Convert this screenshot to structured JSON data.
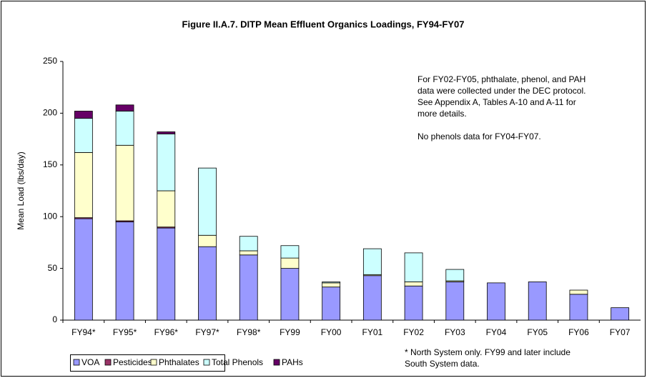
{
  "chart_data": {
    "type": "stacked_bar",
    "title": "Figure II.A.7.  DITP Mean Effluent Organics Loadings, FY94-FY07",
    "y_label": "Mean Load (lbs/day)",
    "categories": [
      "FY94*",
      "FY95*",
      "FY96*",
      "FY97*",
      "FY98*",
      "FY99",
      "FY00",
      "FY01",
      "FY02",
      "FY03",
      "FY04",
      "FY05",
      "FY06",
      "FY07"
    ],
    "series": [
      {
        "name": "VOA",
        "color": "#9999ff",
        "values": [
          98,
          95,
          89,
          71,
          63,
          50,
          32,
          43,
          33,
          37,
          36,
          37,
          25,
          12
        ]
      },
      {
        "name": "Pesticides",
        "color": "#993366",
        "values": [
          1,
          1,
          1,
          0,
          0,
          0,
          0,
          0,
          0,
          0,
          0,
          0,
          0,
          0
        ]
      },
      {
        "name": "Phthalates",
        "color": "#ffffcc",
        "values": [
          63,
          73,
          35,
          11,
          4,
          10,
          4,
          1,
          4,
          1,
          0,
          0,
          4,
          0
        ]
      },
      {
        "name": "Total Phenols",
        "color": "#ccffff",
        "values": [
          33,
          33,
          55,
          65,
          14,
          12,
          1,
          25,
          28,
          11,
          0,
          0,
          0,
          0
        ]
      },
      {
        "name": "PAHs",
        "color": "#660066",
        "values": [
          7,
          6,
          2,
          0,
          0,
          0,
          0,
          0,
          0,
          0,
          0,
          0,
          0,
          0
        ]
      }
    ],
    "ylim": [
      0,
      250
    ],
    "yticks": [
      0,
      50,
      100,
      150,
      200,
      250
    ],
    "grid": false,
    "annotation": [
      "For FY02-FY05, phthalate, phenol, and PAH",
      "data were collected under the DEC protocol.",
      "See Appendix A, Tables A-10 and A-11 for",
      "more details.",
      "",
      "No phenols data for FY04-FY07."
    ],
    "footnote": [
      "*  North System only.  FY99 and later include",
      "South System data."
    ]
  }
}
